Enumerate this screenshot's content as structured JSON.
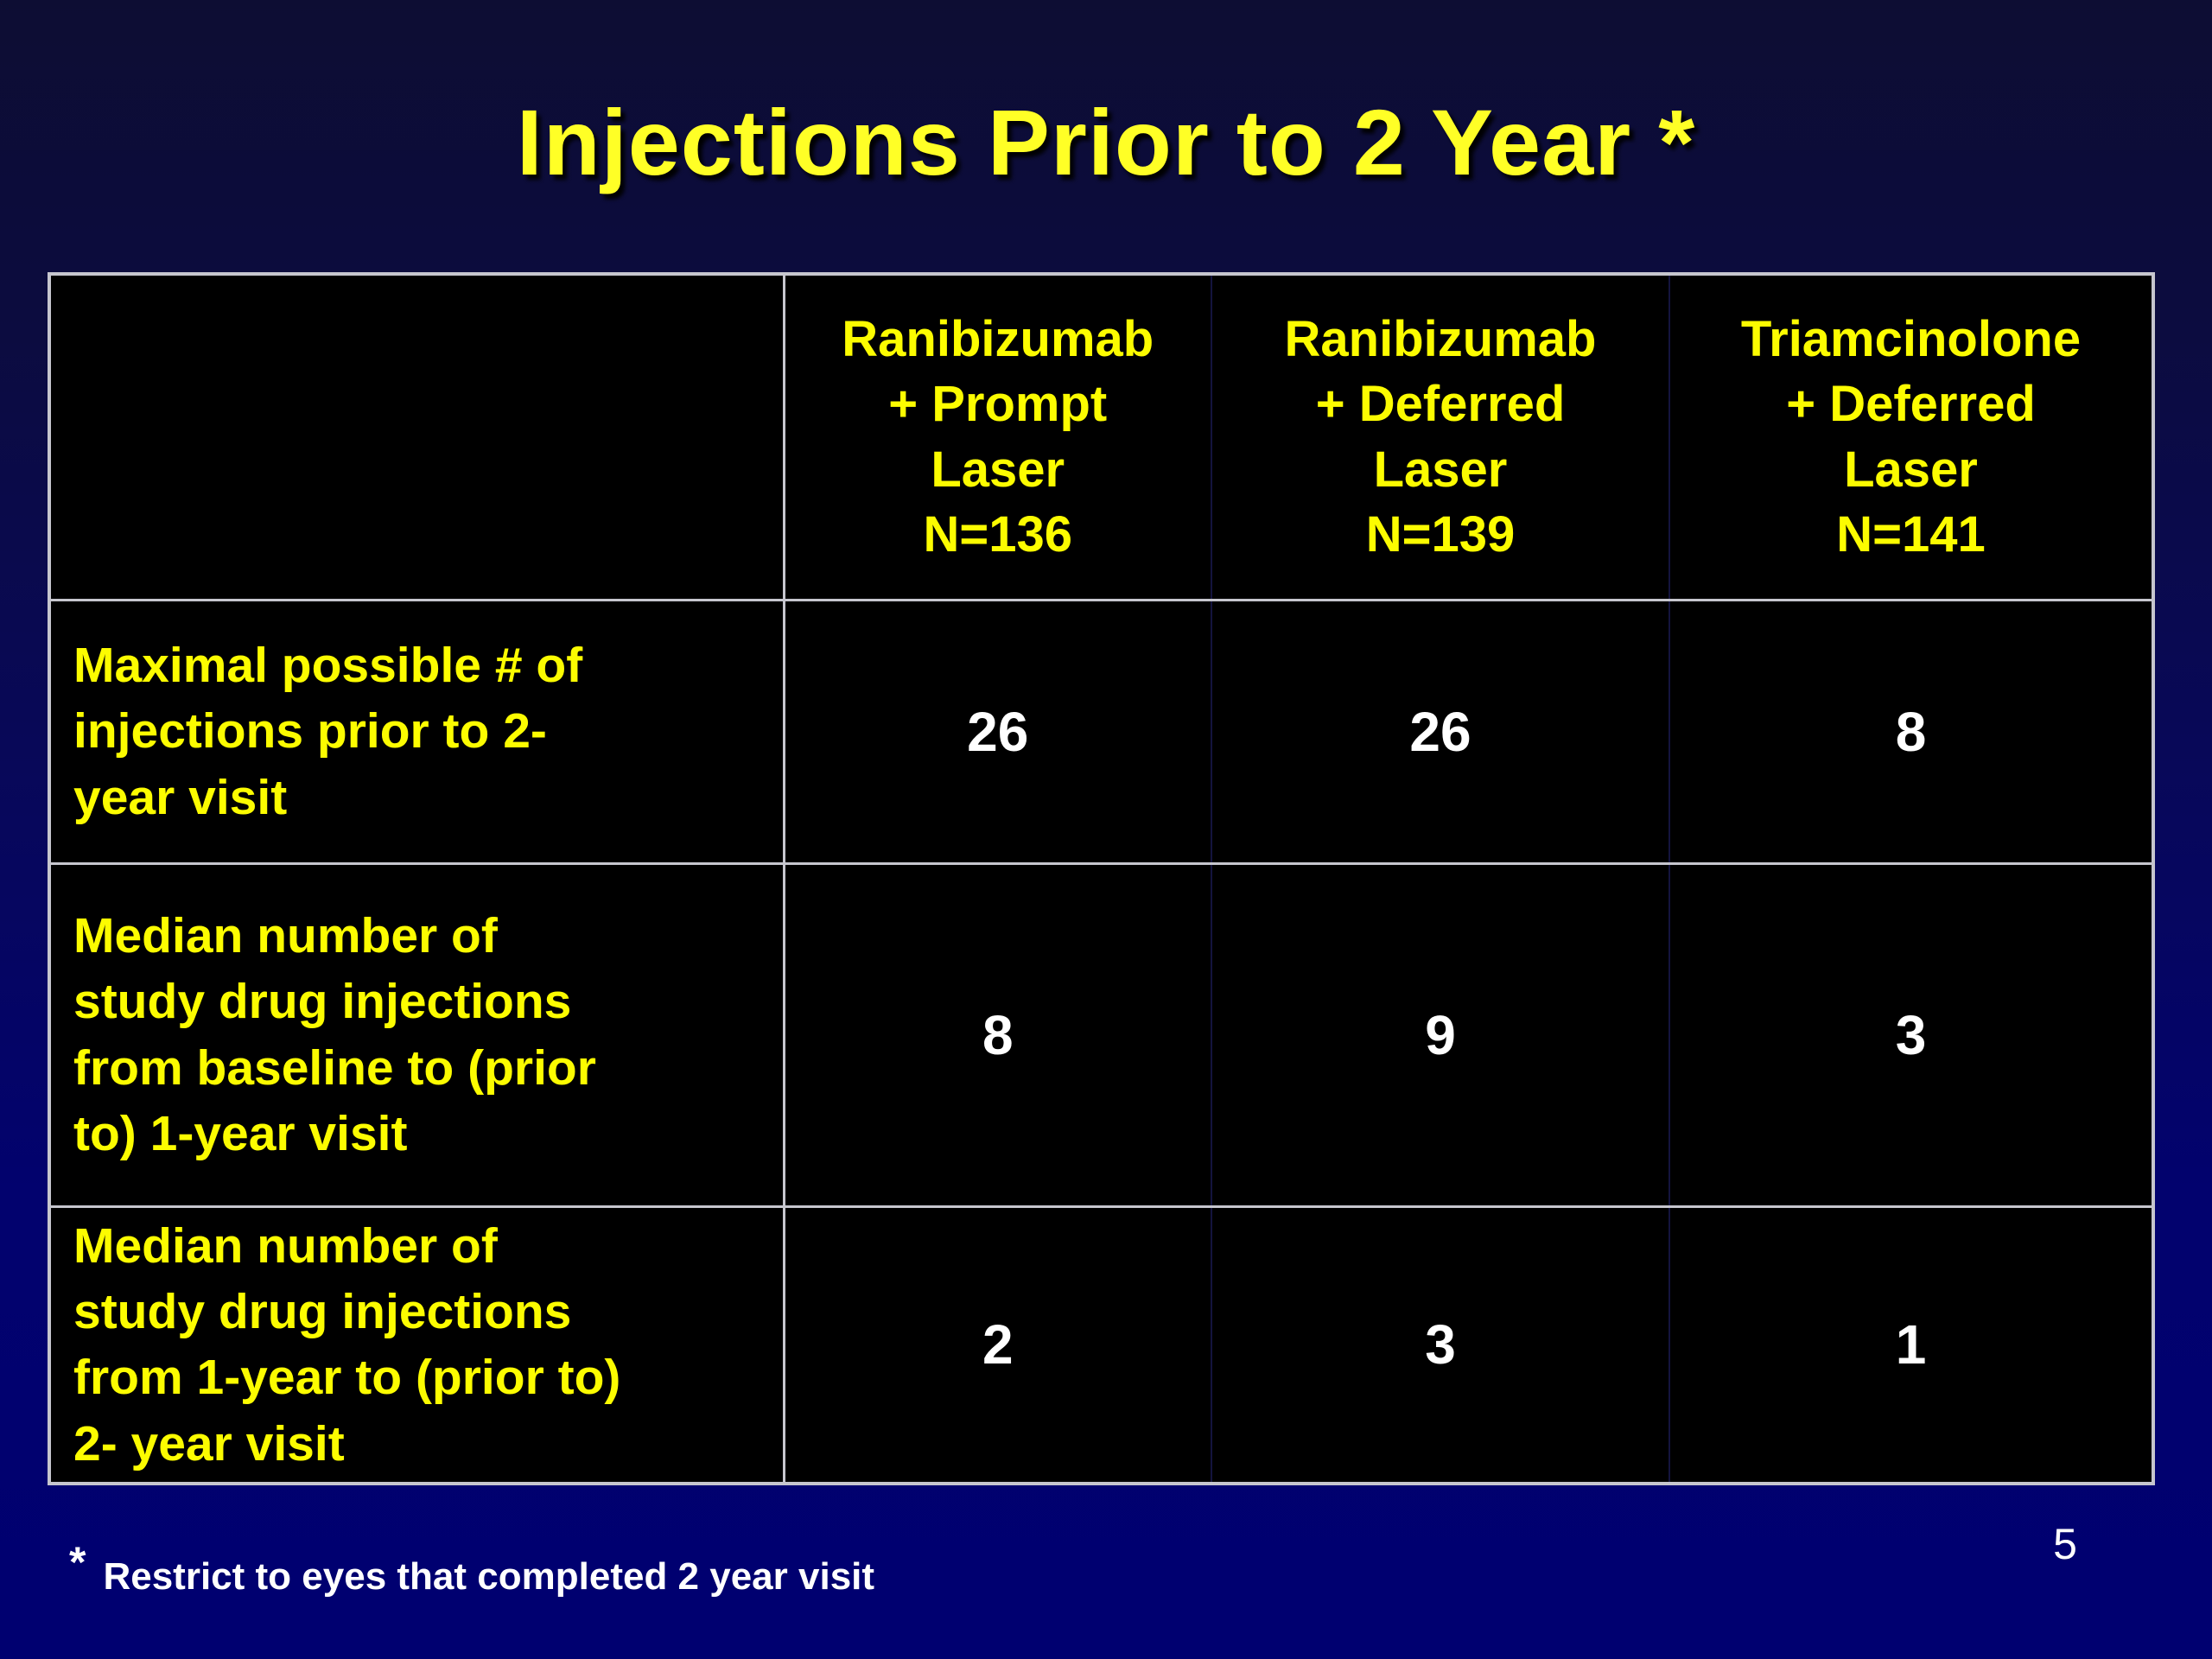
{
  "slide": {
    "title": "Injections Prior to 2 Year *",
    "footnote_marker": "*",
    "footnote_text": "Restrict to eyes that completed 2 year visit",
    "page_number": "5"
  },
  "table": {
    "columns": [
      {
        "label": ""
      },
      {
        "label": "Ranibizumab\n+ Prompt\nLaser\nN=136"
      },
      {
        "label": "Ranibizumab\n+ Deferred\nLaser\nN=139"
      },
      {
        "label": "Triamcinolone\n+ Deferred\nLaser\nN=141"
      }
    ],
    "rows": [
      {
        "label": "Maximal possible # of\ninjections prior to 2-\nyear visit",
        "values": [
          "26",
          "26",
          "8"
        ]
      },
      {
        "label": "Median number of\nstudy drug injections\nfrom baseline to (prior\nto) 1-year visit",
        "values": [
          "8",
          "9",
          "3"
        ]
      },
      {
        "label": "Median number of\nstudy drug injections\nfrom 1-year to (prior to)\n2- year visit",
        "values": [
          "2",
          "3",
          "1"
        ]
      }
    ]
  },
  "colors": {
    "background_top": "#0d0d33",
    "background_bottom": "#000070",
    "table_cell_background": "#000000",
    "table_border": "#c6c6ce",
    "title_yellow": "#ffff26",
    "table_text_yellow": "#fcfc00",
    "value_text_white": "#ffffff"
  }
}
